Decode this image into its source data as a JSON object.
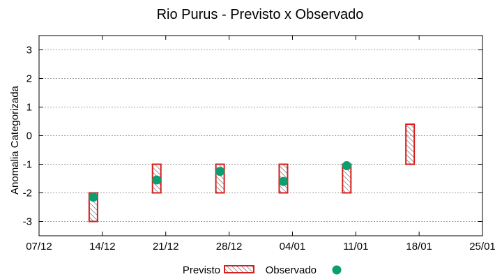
{
  "chart_data": {
    "type": "range-bar-scatter",
    "title": "Rio Purus - Previsto x Observado",
    "xlabel": "",
    "ylabel": "Anomalia Categorizada",
    "x_tick_labels": [
      "07/12",
      "14/12",
      "21/12",
      "28/12",
      "04/01",
      "11/01",
      "18/01",
      "25/01"
    ],
    "xlim_days": [
      0,
      49
    ],
    "ylim": [
      -3.5,
      3.5
    ],
    "y_ticks": [
      -3,
      -2,
      -1,
      0,
      1,
      2,
      3
    ],
    "grid": true,
    "legend": "bottom",
    "series": [
      {
        "name": "Previsto",
        "kind": "range",
        "color": "#d81e1e",
        "x_days": [
          6,
          13,
          20,
          27,
          34,
          41
        ],
        "low": [
          -3.0,
          -2.0,
          -2.0,
          -2.0,
          -2.0,
          -1.0
        ],
        "high": [
          -2.0,
          -1.0,
          -1.0,
          -1.0,
          -1.0,
          0.4
        ]
      },
      {
        "name": "Observado",
        "kind": "points",
        "color": "#0a9e70",
        "x_days": [
          6,
          13,
          20,
          27,
          34
        ],
        "y": [
          -2.15,
          -1.55,
          -1.25,
          -1.6,
          -1.05
        ]
      }
    ]
  }
}
